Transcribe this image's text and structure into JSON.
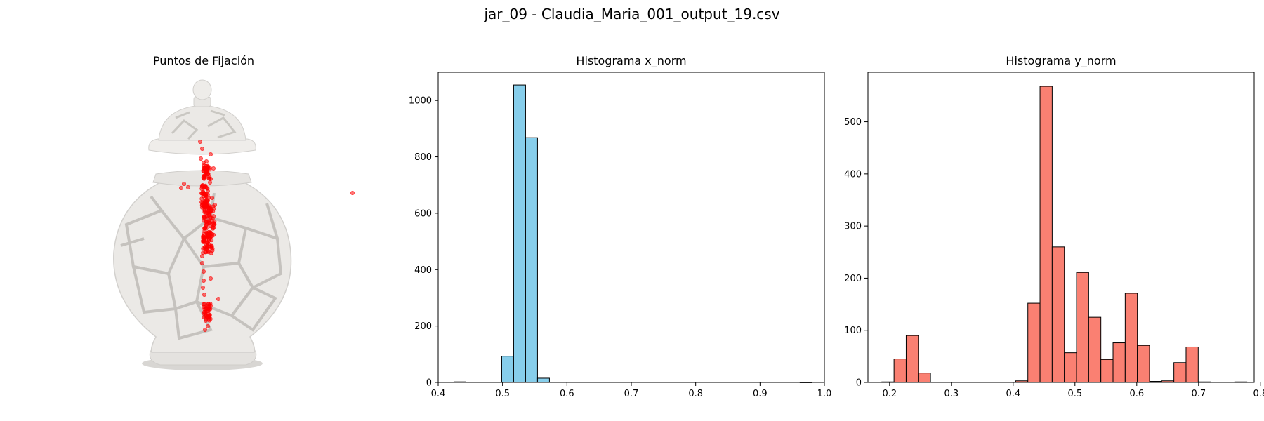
{
  "suptitle": "jar_09 - Claudia_Maria_001_output_19.csv",
  "panels": {
    "fixation": {
      "title": "Puntos de Fijación"
    },
    "hist_x": {
      "title": "Histograma x_norm"
    },
    "hist_y": {
      "title": "Histograma y_norm"
    }
  },
  "colors": {
    "hist_x_fill": "#87ceeb",
    "hist_y_fill": "#fa8072",
    "edge": "#000000",
    "fixation_point": "#ff0000",
    "vase": "#e9e7e4"
  },
  "chart_data": [
    {
      "type": "scatter",
      "title": "Puntos de Fijación",
      "background": "vase image (jar_09)",
      "axes_visible": false,
      "point_color": "#ff0000",
      "note": "fixation points overlaid on jar image, mostly clustered along the vertical centre of the jar"
    },
    {
      "type": "bar",
      "title": "Histograma x_norm",
      "bins": 30,
      "bin_start": 0.4245,
      "bin_width": 0.01854,
      "counts": [
        2,
        0,
        0,
        0,
        93,
        1055,
        868,
        15,
        0,
        0,
        0,
        0,
        0,
        0,
        0,
        0,
        0,
        0,
        0,
        0,
        0,
        0,
        0,
        0,
        0,
        0,
        0,
        0,
        0,
        1
      ],
      "xlim": [
        0.4,
        1.0
      ],
      "ylim": [
        0,
        1100
      ],
      "xticks": [
        "0.4",
        "0.5",
        "0.6",
        "0.7",
        "0.8",
        "0.9",
        "1.0"
      ],
      "yticks": [
        "0",
        "200",
        "400",
        "600",
        "800",
        "1000"
      ],
      "color": "#87ceeb"
    },
    {
      "type": "bar",
      "title": "Histograma y_norm",
      "bins": 30,
      "bin_start": 0.1875,
      "bin_width": 0.01969,
      "counts": [
        1,
        45,
        90,
        18,
        0,
        0,
        0,
        0,
        0,
        0,
        0,
        3,
        152,
        568,
        260,
        57,
        211,
        125,
        44,
        76,
        171,
        71,
        2,
        3,
        38,
        68,
        1,
        0,
        0,
        1
      ],
      "xlim": [
        0.165,
        0.79
      ],
      "ylim": [
        0,
        595
      ],
      "xticks": [
        "0.2",
        "0.3",
        "0.4",
        "0.5",
        "0.6",
        "0.7",
        "0.8"
      ],
      "yticks": [
        "0",
        "100",
        "200",
        "300",
        "400",
        "500"
      ],
      "color": "#fa8072"
    }
  ]
}
